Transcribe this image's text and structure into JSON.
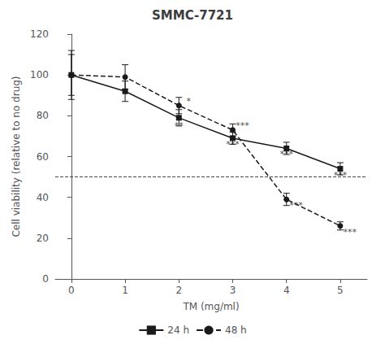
{
  "chart_data": {
    "type": "line",
    "title": "SMMC-7721",
    "xlabel": "TM (mg/ml)",
    "ylabel": "Cell viability (relative to no drug)",
    "x": [
      0,
      1,
      2,
      3,
      4,
      5
    ],
    "series": [
      {
        "name": "24 h",
        "color": "#1a1a1a",
        "marker": "square",
        "line_style": "solid",
        "values": [
          100,
          92,
          79,
          69,
          64,
          54
        ],
        "errors": [
          10,
          5,
          4,
          3,
          3,
          3
        ]
      },
      {
        "name": "48 h",
        "color": "#1a1a1a",
        "marker": "circle",
        "line_style": "dashed",
        "values": [
          100,
          99,
          85,
          73,
          39,
          26
        ],
        "errors": [
          12,
          6,
          4,
          3,
          3,
          2
        ]
      }
    ],
    "hline": 50,
    "color": "#1a1a1a",
    "annotations": [
      {
        "x": 2,
        "y": 75,
        "text": "**"
      },
      {
        "x": 3,
        "y": 66,
        "text": "***"
      },
      {
        "x": 4,
        "y": 61,
        "text": "***"
      },
      {
        "x": 5,
        "y": 51,
        "text": "***"
      },
      {
        "x": 2.18,
        "y": 87,
        "text": "*"
      },
      {
        "x": 3.18,
        "y": 75,
        "text": "***"
      },
      {
        "x": 4.18,
        "y": 36,
        "text": "***"
      },
      {
        "x": 5.18,
        "y": 23,
        "text": "***"
      }
    ],
    "xlim": [
      -0.3,
      5.5
    ],
    "ylim": [
      0,
      120
    ],
    "xticks": [
      0,
      1,
      2,
      3,
      4,
      5
    ],
    "yticks": [
      0,
      20,
      40,
      60,
      80,
      100,
      120
    ],
    "grid": false,
    "legend": "bottom"
  }
}
